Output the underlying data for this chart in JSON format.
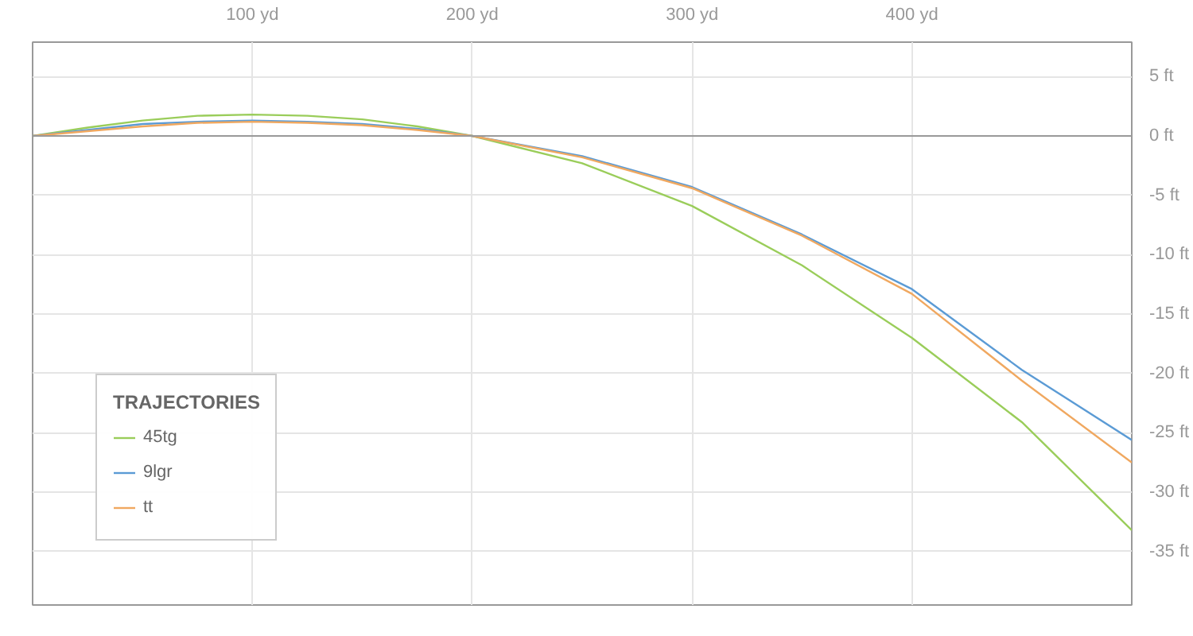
{
  "chart_data": {
    "type": "line",
    "legend_title": "TRAJECTORIES",
    "legend": "bottom left",
    "grid": true,
    "x": [
      0,
      25,
      50,
      75,
      100,
      125,
      150,
      175,
      200,
      250,
      300,
      350,
      400,
      450,
      500
    ],
    "series": [
      {
        "name": "45tg",
        "color": "#9acd5a",
        "values": [
          0,
          0.7,
          1.3,
          1.7,
          1.8,
          1.7,
          1.4,
          0.8,
          0,
          -2.3,
          -5.9,
          -10.9,
          -17,
          -24.1,
          -33.2
        ]
      },
      {
        "name": "9lgr",
        "color": "#5b9bd5",
        "values": [
          0,
          0.5,
          1.0,
          1.2,
          1.3,
          1.2,
          1.0,
          0.6,
          0,
          -1.7,
          -4.3,
          -8.3,
          -12.9,
          -19.7,
          -25.6
        ]
      },
      {
        "name": "tt",
        "color": "#f0a860",
        "values": [
          0,
          0.4,
          0.8,
          1.1,
          1.2,
          1.1,
          0.9,
          0.5,
          0,
          -1.8,
          -4.4,
          -8.4,
          -13.3,
          -20.6,
          -27.5
        ]
      }
    ],
    "xlim": [
      0,
      500
    ],
    "ylim": [
      -39.5,
      7.9
    ],
    "xticks": [
      {
        "value": 100,
        "label": "100 yd"
      },
      {
        "value": 200,
        "label": "200 yd"
      },
      {
        "value": 300,
        "label": "300 yd"
      },
      {
        "value": 400,
        "label": "400 yd"
      }
    ],
    "yticks": [
      {
        "value": 5,
        "label": "5 ft"
      },
      {
        "value": 0,
        "label": "0 ft"
      },
      {
        "value": -5,
        "label": "-5 ft"
      },
      {
        "value": -10,
        "label": "-10 ft"
      },
      {
        "value": -15,
        "label": "-15 ft"
      },
      {
        "value": -20,
        "label": "-20 ft"
      },
      {
        "value": -25,
        "label": "-25 ft"
      },
      {
        "value": -30,
        "label": "-30 ft"
      },
      {
        "value": -35,
        "label": "-35 ft"
      }
    ],
    "ref_lines": [
      {
        "axis": "y",
        "value": 0,
        "color": "#999999"
      }
    ]
  }
}
